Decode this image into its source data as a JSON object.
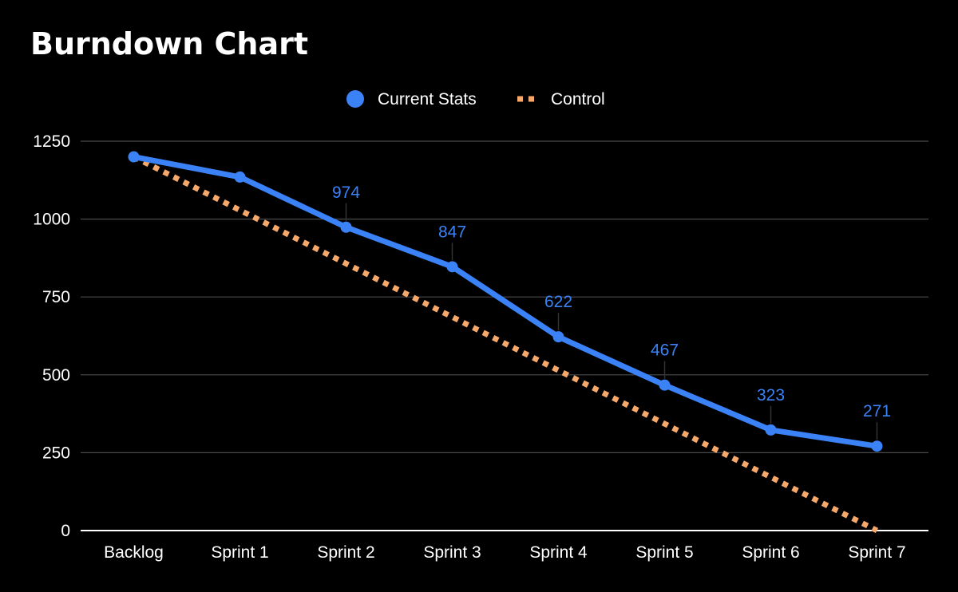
{
  "chart_data": {
    "type": "line",
    "title": "Burndown Chart",
    "categories": [
      "Backlog",
      "Sprint 1",
      "Sprint 2",
      "Sprint 3",
      "Sprint 4",
      "Sprint 5",
      "Sprint 6",
      "Sprint 7"
    ],
    "series": [
      {
        "name": "Current Stats",
        "values": [
          1200,
          1135,
          974,
          847,
          622,
          467,
          323,
          271
        ],
        "data_labels": [
          null,
          null,
          "974",
          "847",
          "622",
          "467",
          "323",
          "271"
        ],
        "color": "#3b82f6",
        "style": "solid-with-markers"
      },
      {
        "name": "Control",
        "values": [
          1200,
          1028.6,
          857.1,
          685.7,
          514.3,
          342.9,
          171.4,
          0
        ],
        "color": "#f6a96b",
        "style": "dotted"
      }
    ],
    "yticks": [
      "0",
      "250",
      "500",
      "750",
      "1000",
      "1250"
    ],
    "ylim": [
      0,
      1250
    ],
    "grid": true,
    "legend_position": "top-center",
    "background": "#000000"
  }
}
